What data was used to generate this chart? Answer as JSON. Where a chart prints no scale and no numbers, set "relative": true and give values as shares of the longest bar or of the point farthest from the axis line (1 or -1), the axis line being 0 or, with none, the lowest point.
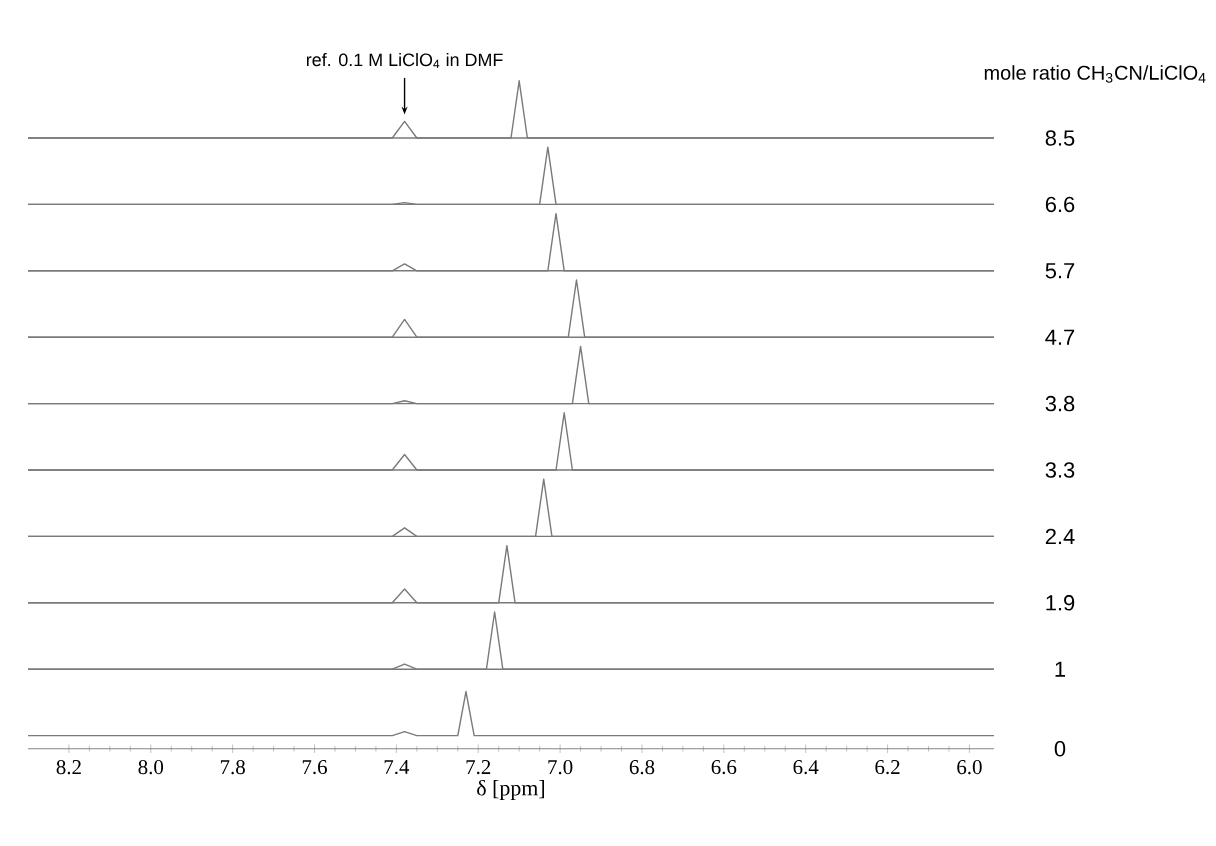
{
  "chart_data": [
    {
      "type": "line",
      "relative": true,
      "xlim": [
        8.3,
        5.94
      ],
      "tick_labels": false,
      "legend_title": "mole ratio CH$_{3}$CN/LiClO$_{4}$",
      "annotations": [
        {
          "text": "ref. 0.1 M LiClO$_{4}$ in DMF",
          "x": 7.38,
          "y": 0.29
        }
      ],
      "x": [
        8.3,
        7.41,
        7.38,
        7.35,
        7.12,
        7.1,
        7.08,
        5.94
      ],
      "series": [
        {
          "name": "8.5",
          "color": "#7a7a7a",
          "values": [
            0,
            0,
            0.29,
            0,
            0,
            1,
            0,
            0
          ]
        }
      ]
    },
    {
      "type": "line",
      "relative": true,
      "xlim": [
        8.3,
        5.94
      ],
      "tick_labels": false,
      "x": [
        8.3,
        7.41,
        7.38,
        7.35,
        7.05,
        7.03,
        7.01,
        5.94
      ],
      "series": [
        {
          "name": "6.6",
          "color": "#7a7a7a",
          "values": [
            0,
            0,
            0.03,
            0,
            0,
            1,
            0,
            0
          ]
        }
      ]
    },
    {
      "type": "line",
      "relative": true,
      "xlim": [
        8.3,
        5.94
      ],
      "tick_labels": false,
      "x": [
        8.3,
        7.41,
        7.38,
        7.35,
        7.03,
        7.01,
        6.99,
        5.94
      ],
      "series": [
        {
          "name": "5.7",
          "color": "#7a7a7a",
          "values": [
            0,
            0,
            0.12,
            0,
            0,
            1,
            0,
            0
          ]
        }
      ]
    },
    {
      "type": "line",
      "relative": true,
      "xlim": [
        8.3,
        5.94
      ],
      "tick_labels": false,
      "x": [
        8.3,
        7.41,
        7.38,
        7.35,
        6.98,
        6.96,
        6.94,
        5.94
      ],
      "series": [
        {
          "name": "4.7",
          "color": "#7a7a7a",
          "values": [
            0,
            0,
            0.31,
            0,
            0,
            1,
            0,
            0
          ]
        }
      ]
    },
    {
      "type": "line",
      "relative": true,
      "xlim": [
        8.3,
        5.94
      ],
      "tick_labels": false,
      "x": [
        8.3,
        7.41,
        7.38,
        7.35,
        6.97,
        6.95,
        6.93,
        5.94
      ],
      "series": [
        {
          "name": "3.8",
          "color": "#7a7a7a",
          "values": [
            0,
            0,
            0.05,
            0,
            0,
            1,
            0,
            0
          ]
        }
      ]
    },
    {
      "type": "line",
      "relative": true,
      "xlim": [
        8.3,
        5.94
      ],
      "tick_labels": false,
      "x": [
        8.3,
        7.41,
        7.38,
        7.35,
        7.01,
        6.99,
        6.97,
        5.94
      ],
      "series": [
        {
          "name": "3.3",
          "color": "#7a7a7a",
          "values": [
            0,
            0,
            0.27,
            0,
            0,
            1,
            0,
            0
          ]
        }
      ]
    },
    {
      "type": "line",
      "relative": true,
      "xlim": [
        8.3,
        5.94
      ],
      "tick_labels": false,
      "x": [
        8.3,
        7.41,
        7.38,
        7.35,
        7.06,
        7.04,
        7.02,
        5.94
      ],
      "series": [
        {
          "name": "2.4",
          "color": "#7a7a7a",
          "values": [
            0,
            0,
            0.15,
            0,
            0,
            1,
            0,
            0
          ]
        }
      ]
    },
    {
      "type": "line",
      "relative": true,
      "xlim": [
        8.3,
        5.94
      ],
      "tick_labels": false,
      "x": [
        8.3,
        7.41,
        7.38,
        7.35,
        7.15,
        7.13,
        7.11,
        5.94
      ],
      "series": [
        {
          "name": "1.9",
          "color": "#7a7a7a",
          "values": [
            0,
            0,
            0.24,
            0,
            0,
            1,
            0,
            0
          ]
        }
      ]
    },
    {
      "type": "line",
      "relative": true,
      "xlim": [
        8.3,
        5.94
      ],
      "tick_labels": false,
      "x": [
        8.3,
        7.41,
        7.38,
        7.35,
        7.18,
        7.16,
        7.14,
        5.94
      ],
      "series": [
        {
          "name": "1",
          "color": "#7a7a7a",
          "values": [
            0,
            0,
            0.09,
            0,
            0,
            1,
            0,
            0
          ]
        }
      ]
    },
    {
      "type": "line",
      "relative": true,
      "xlim": [
        8.3,
        5.94
      ],
      "tick_labels": "x",
      "xlabel": "δ [ppm]",
      "xticks": [
        {
          "value": 8.2,
          "label": "8.2"
        },
        {
          "value": 8.0,
          "label": "8.0"
        },
        {
          "value": 7.8,
          "label": "7.8"
        },
        {
          "value": 7.6,
          "label": "7.6"
        },
        {
          "value": 7.4,
          "label": "7.4"
        },
        {
          "value": 7.2,
          "label": "7.2"
        },
        {
          "value": 7.0,
          "label": "7.0"
        },
        {
          "value": 6.8,
          "label": "6.8"
        },
        {
          "value": 6.6,
          "label": "6.6"
        },
        {
          "value": 6.4,
          "label": "6.4"
        },
        {
          "value": 6.2,
          "label": "6.2"
        },
        {
          "value": 6.0,
          "label": "6.0"
        }
      ],
      "x": [
        8.3,
        7.41,
        7.38,
        7.35,
        7.25,
        7.23,
        7.21,
        5.94
      ],
      "series": [
        {
          "name": "0",
          "color": "#7a7a7a",
          "values": [
            0.23,
            0.23,
            0.3,
            0.23,
            0.23,
            1,
            0.23,
            0.23
          ]
        }
      ]
    }
  ]
}
